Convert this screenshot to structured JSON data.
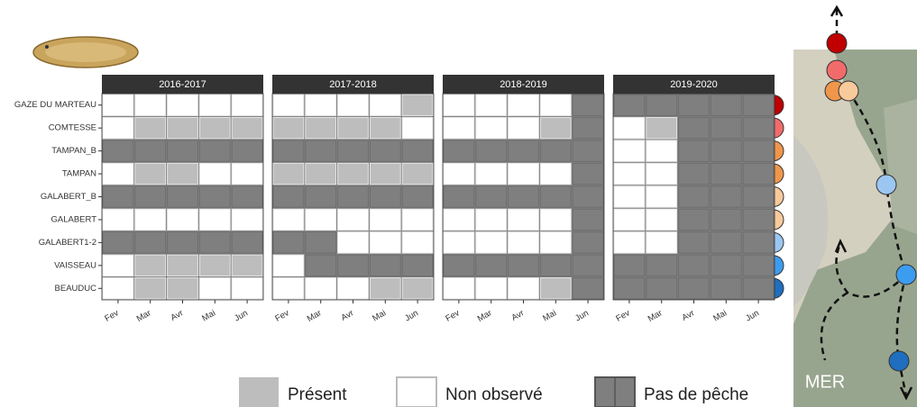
{
  "chart_data": {
    "type": "tile",
    "months": [
      "Fev",
      "Mar",
      "Avr",
      "Mai",
      "Jun"
    ],
    "rows": [
      {
        "label": "GAZE DU MARTEAU",
        "color": "#c00000"
      },
      {
        "label": "COMTESSE",
        "color": "#f26b6b"
      },
      {
        "label": "TAMPAN_B",
        "color": "#f0964a"
      },
      {
        "label": "TAMPAN",
        "color": "#f0964a"
      },
      {
        "label": "GALABERT_B",
        "color": "#f8c99b"
      },
      {
        "label": "GALABERT",
        "color": "#f8c99b"
      },
      {
        "label": "GALABERT1-2",
        "color": "#9cc6f2"
      },
      {
        "label": "VAISSEAU",
        "color": "#3c9cf0"
      },
      {
        "label": "BEAUDUC",
        "color": "#1f6ebf"
      }
    ],
    "legend": [
      {
        "name": "Présent",
        "color": "#bdbdbd"
      },
      {
        "name": "Non observé",
        "color": "#ffffff"
      },
      {
        "name": "Pas de pêche",
        "color": "#7f7f7f"
      }
    ],
    "facets": [
      {
        "title": "2016-2017",
        "cells": [
          [
            "Non observé",
            "Non observé",
            "Non observé",
            "Non observé",
            "Non observé"
          ],
          [
            "Non observé",
            "Présent",
            "Présent",
            "Présent",
            "Présent"
          ],
          [
            "Pas de pêche",
            "Pas de pêche",
            "Pas de pêche",
            "Pas de pêche",
            "Pas de pêche"
          ],
          [
            "Non observé",
            "Présent",
            "Présent",
            "Non observé",
            "Non observé"
          ],
          [
            "Pas de pêche",
            "Pas de pêche",
            "Pas de pêche",
            "Pas de pêche",
            "Pas de pêche"
          ],
          [
            "Non observé",
            "Non observé",
            "Non observé",
            "Non observé",
            "Non observé"
          ],
          [
            "Pas de pêche",
            "Pas de pêche",
            "Pas de pêche",
            "Pas de pêche",
            "Pas de pêche"
          ],
          [
            "Non observé",
            "Présent",
            "Présent",
            "Présent",
            "Présent"
          ],
          [
            "Non observé",
            "Présent",
            "Présent",
            "Non observé",
            "Non observé"
          ]
        ]
      },
      {
        "title": "2017-2018",
        "cells": [
          [
            "Non observé",
            "Non observé",
            "Non observé",
            "Non observé",
            "Présent"
          ],
          [
            "Présent",
            "Présent",
            "Présent",
            "Présent",
            "Non observé"
          ],
          [
            "Pas de pêche",
            "Pas de pêche",
            "Pas de pêche",
            "Pas de pêche",
            "Pas de pêche"
          ],
          [
            "Présent",
            "Présent",
            "Présent",
            "Présent",
            "Présent"
          ],
          [
            "Pas de pêche",
            "Pas de pêche",
            "Pas de pêche",
            "Pas de pêche",
            "Pas de pêche"
          ],
          [
            "Non observé",
            "Non observé",
            "Non observé",
            "Non observé",
            "Non observé"
          ],
          [
            "Pas de pêche",
            "Pas de pêche",
            "Non observé",
            "Non observé",
            "Non observé"
          ],
          [
            "Non observé",
            "Pas de pêche",
            "Pas de pêche",
            "Pas de pêche",
            "Pas de pêche"
          ],
          [
            "Non observé",
            "Non observé",
            "Non observé",
            "Présent",
            "Présent"
          ]
        ]
      },
      {
        "title": "2018-2019",
        "cells": [
          [
            "Non observé",
            "Non observé",
            "Non observé",
            "Non observé",
            "Pas de pêche"
          ],
          [
            "Non observé",
            "Non observé",
            "Non observé",
            "Présent",
            "Pas de pêche"
          ],
          [
            "Pas de pêche",
            "Pas de pêche",
            "Pas de pêche",
            "Pas de pêche",
            "Pas de pêche"
          ],
          [
            "Non observé",
            "Non observé",
            "Non observé",
            "Non observé",
            "Pas de pêche"
          ],
          [
            "Pas de pêche",
            "Pas de pêche",
            "Pas de pêche",
            "Pas de pêche",
            "Pas de pêche"
          ],
          [
            "Non observé",
            "Non observé",
            "Non observé",
            "Non observé",
            "Pas de pêche"
          ],
          [
            "Non observé",
            "Non observé",
            "Non observé",
            "Non observé",
            "Pas de pêche"
          ],
          [
            "Pas de pêche",
            "Pas de pêche",
            "Pas de pêche",
            "Pas de pêche",
            "Pas de pêche"
          ],
          [
            "Non observé",
            "Non observé",
            "Non observé",
            "Présent",
            "Pas de pêche"
          ]
        ]
      },
      {
        "title": "2019-2020",
        "cells": [
          [
            "Pas de pêche",
            "Pas de pêche",
            "Pas de pêche",
            "Pas de pêche",
            "Pas de pêche"
          ],
          [
            "Non observé",
            "Présent",
            "Pas de pêche",
            "Pas de pêche",
            "Pas de pêche"
          ],
          [
            "Non observé",
            "Non observé",
            "Pas de pêche",
            "Pas de pêche",
            "Pas de pêche"
          ],
          [
            "Non observé",
            "Non observé",
            "Pas de pêche",
            "Pas de pêche",
            "Pas de pêche"
          ],
          [
            "Non observé",
            "Non observé",
            "Pas de pêche",
            "Pas de pêche",
            "Pas de pêche"
          ],
          [
            "Non observé",
            "Non observé",
            "Pas de pêche",
            "Pas de pêche",
            "Pas de pêche"
          ],
          [
            "Non observé",
            "Non observé",
            "Pas de pêche",
            "Pas de pêche",
            "Pas de pêche"
          ],
          [
            "Pas de pêche",
            "Pas de pêche",
            "Pas de pêche",
            "Pas de pêche",
            "Pas de pêche"
          ],
          [
            "Pas de pêche",
            "Pas de pêche",
            "Pas de pêche",
            "Pas de pêche",
            "Pas de pêche"
          ]
        ]
      }
    ],
    "map_label": "MER"
  }
}
